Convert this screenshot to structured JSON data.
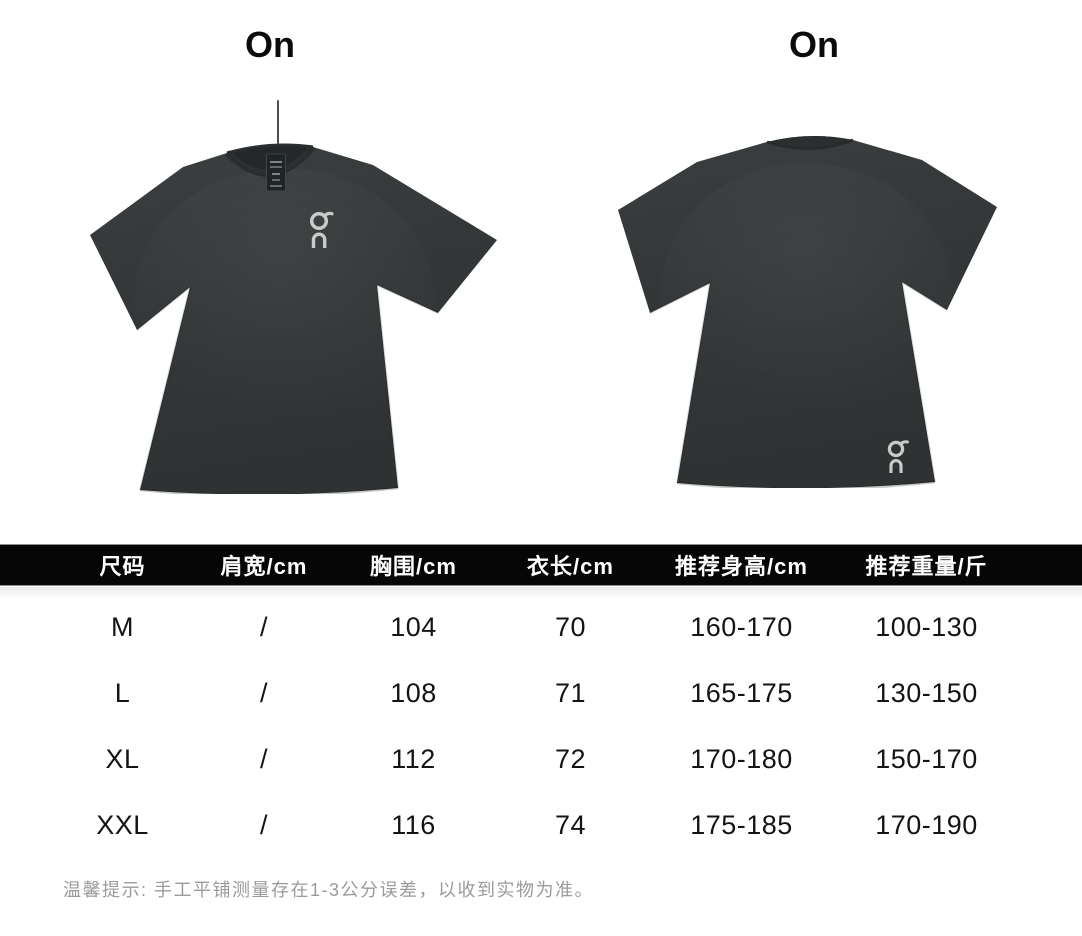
{
  "header": {
    "front_title": "On",
    "back_title": "On"
  },
  "product": {
    "brand": "On",
    "front_logo_icon": "on-logo",
    "back_logo_icon": "on-logo"
  },
  "colors": {
    "background": "#ffffff",
    "shirt": "#333738",
    "shirt_shadow": "#2e3233",
    "collar_inner": "#25292a",
    "logo": "#c7cbc9",
    "table_header_bg": "#060606",
    "table_header_text": "#ffffff",
    "table_body_text": "#141414",
    "note_text": "#9b9b9b"
  },
  "size_table": {
    "columns": [
      "尺码",
      "肩宽/cm",
      "胸围/cm",
      "衣长/cm",
      "推荐身高/cm",
      "推荐重量/斤"
    ],
    "rows": [
      [
        "M",
        "/",
        "104",
        "70",
        "160-170",
        "100-130"
      ],
      [
        "L",
        "/",
        "108",
        "71",
        "165-175",
        "130-150"
      ],
      [
        "XL",
        "/",
        "112",
        "72",
        "170-180",
        "150-170"
      ],
      [
        "XXL",
        "/",
        "116",
        "74",
        "175-185",
        "170-190"
      ]
    ]
  },
  "note": {
    "text": "温馨提示: 手工平铺测量存在1-3公分误差，以收到实物为准。"
  }
}
